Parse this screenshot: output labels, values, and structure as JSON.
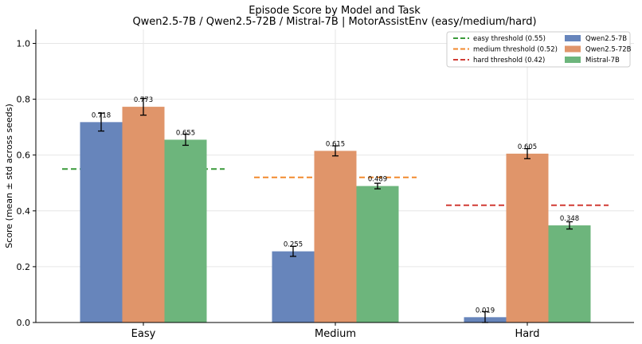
{
  "chart_data": {
    "type": "bar",
    "title": "Episode Score by Model and Task",
    "subtitle": "Qwen2.5-7B / Qwen2.5-72B / Mistral-7B  |  MotorAssistEnv (easy/medium/hard)",
    "ylabel": "Score (mean ± std across seeds)",
    "xlabel": "",
    "ylim": [
      0,
      1.05
    ],
    "yticks": [
      0.0,
      0.2,
      0.4,
      0.6,
      0.8,
      1.0
    ],
    "ytick_labels": [
      "0.0",
      "0.2",
      "0.4",
      "0.6",
      "0.8",
      "1.0"
    ],
    "grid": true,
    "legend_placement": "top-right",
    "categories": [
      "Easy",
      "Medium",
      "Hard"
    ],
    "series": [
      {
        "name": "Qwen2.5-7B",
        "color": "#6785bb",
        "values": [
          0.718,
          0.255,
          0.019
        ],
        "errors": [
          0.032,
          0.018,
          0.02
        ],
        "labels": [
          "0.718",
          "0.255",
          "0.019"
        ]
      },
      {
        "name": "Qwen2.5-72B",
        "color": "#e0956a",
        "values": [
          0.773,
          0.615,
          0.605
        ],
        "errors": [
          0.03,
          0.018,
          0.018
        ],
        "labels": [
          "0.773",
          "0.615",
          "0.605"
        ]
      },
      {
        "name": "Mistral-7B",
        "color": "#6db57c",
        "values": [
          0.655,
          0.489,
          0.348
        ],
        "errors": [
          0.02,
          0.01,
          0.013
        ],
        "labels": [
          "0.655",
          "0.489",
          "0.348"
        ]
      }
    ],
    "thresholds": [
      {
        "name": "easy threshold (0.55)",
        "value": 0.55,
        "category": 0,
        "color": "#3a9a3a"
      },
      {
        "name": "medium threshold (0.52)",
        "value": 0.52,
        "category": 1,
        "color": "#f28a2e"
      },
      {
        "name": "hard threshold (0.42)",
        "value": 0.42,
        "category": 2,
        "color": "#d13b34"
      }
    ]
  }
}
